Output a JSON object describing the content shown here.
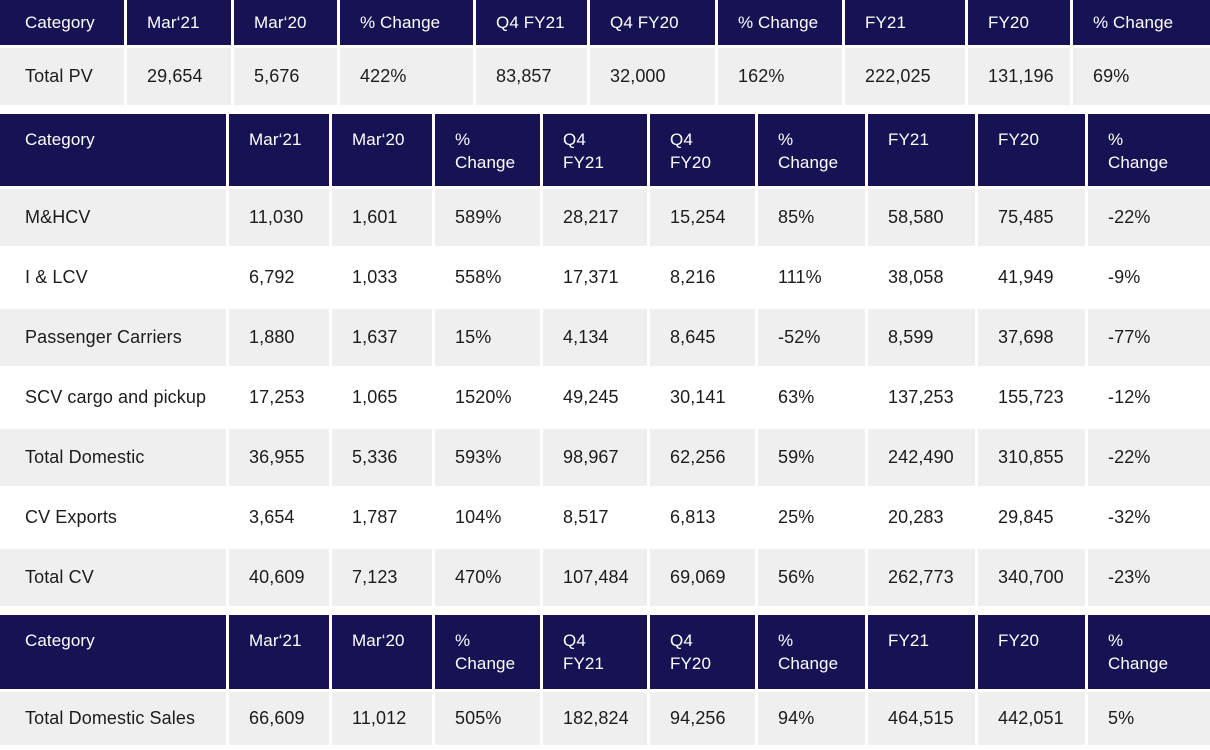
{
  "colors": {
    "header_bg": "#171253",
    "header_text": "#ffffff",
    "row_alt_bg": "#efefef",
    "row_bg": "#ffffff",
    "cell_text": "#1c1c1c"
  },
  "chart_data": [
    {
      "type": "table",
      "name": "pv-sales",
      "columns": [
        "Category",
        "Mar‘21",
        "Mar‘20",
        "% Change",
        "Q4 FY21",
        "Q4 FY20",
        "% Change",
        "FY21",
        "FY20",
        "% Change"
      ],
      "rows": [
        [
          "Total PV",
          "29,654",
          "5,676",
          "422%",
          "83,857",
          "32,000",
          "162%",
          "222,025",
          "131,196",
          "69%"
        ]
      ]
    },
    {
      "type": "table",
      "name": "cv-sales",
      "columns": [
        "Category",
        "Mar‘21",
        "Mar‘20",
        "%\nChange",
        "Q4\nFY21",
        "Q4\nFY20",
        "%\nChange",
        "FY21",
        "FY20",
        "%\nChange"
      ],
      "rows": [
        [
          "M&HCV",
          "11,030",
          "1,601",
          "589%",
          "28,217",
          "15,254",
          "85%",
          "58,580",
          "75,485",
          "-22%"
        ],
        [
          "I & LCV",
          "6,792",
          "1,033",
          "558%",
          "17,371",
          "8,216",
          "111%",
          "38,058",
          "41,949",
          "-9%"
        ],
        [
          "Passenger Carriers",
          "1,880",
          "1,637",
          "15%",
          "4,134",
          "8,645",
          "-52%",
          "8,599",
          "37,698",
          "-77%"
        ],
        [
          "SCV cargo and pickup",
          "17,253",
          "1,065",
          "1520%",
          "49,245",
          "30,141",
          "63%",
          "137,253",
          "155,723",
          "-12%"
        ],
        [
          "Total Domestic",
          "36,955",
          "5,336",
          "593%",
          "98,967",
          "62,256",
          "59%",
          "242,490",
          "310,855",
          "-22%"
        ],
        [
          "CV Exports",
          "3,654",
          "1,787",
          "104%",
          "8,517",
          "6,813",
          "25%",
          "20,283",
          "29,845",
          "-32%"
        ],
        [
          "Total CV",
          "40,609",
          "7,123",
          "470%",
          "107,484",
          "69,069",
          "56%",
          "262,773",
          "340,700",
          "-23%"
        ]
      ]
    },
    {
      "type": "table",
      "name": "total-domestic-sales",
      "columns": [
        "Category",
        "Mar‘21",
        "Mar‘20",
        "%\nChange",
        "Q4\nFY21",
        "Q4\nFY20",
        "%\nChange",
        "FY21",
        "FY20",
        "%\nChange"
      ],
      "rows": [
        [
          "Total Domestic Sales",
          "66,609",
          "11,012",
          "505%",
          "182,824",
          "94,256",
          "94%",
          "464,515",
          "442,051",
          "5%"
        ]
      ]
    }
  ]
}
